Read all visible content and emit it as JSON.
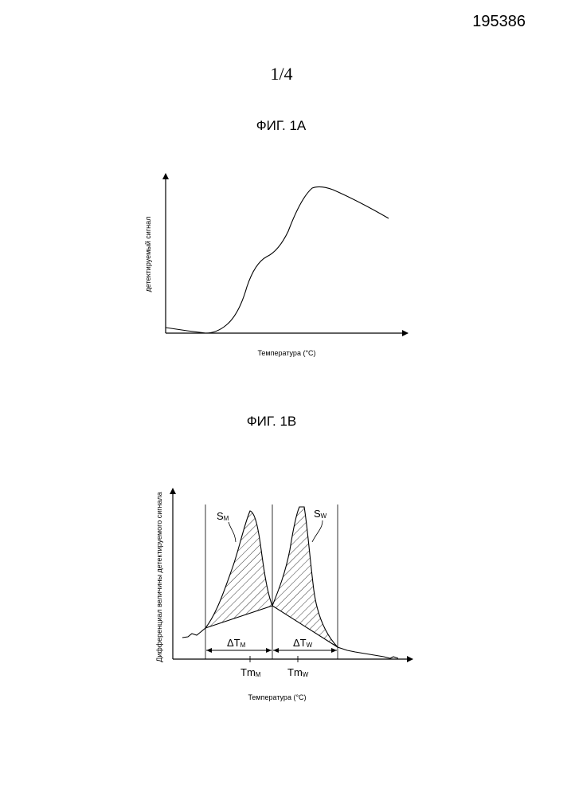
{
  "header": {
    "doc_number": "195386",
    "page_number": "1/4"
  },
  "figure_1a": {
    "title": "ФИГ. 1A",
    "ylabel": "детектируемый сигнал",
    "xlabel": "Температура (°C)"
  },
  "figure_1b": {
    "title": "ФИГ. 1B",
    "ylabel": "Дифференциал величины детектируемого сигнала",
    "xlabel": "Температура (°C)",
    "label_sm": "S",
    "label_sm_sub": "M",
    "label_sw": "S",
    "label_sw_sub": "W",
    "label_dtm": "ΔT",
    "label_dtm_sub": "M",
    "label_dtw": "ΔT",
    "label_dtw_sub": "W",
    "label_tmm": "Tm",
    "label_tmm_sub": "M",
    "label_tmw": "Tm",
    "label_tmw_sub": "W"
  }
}
